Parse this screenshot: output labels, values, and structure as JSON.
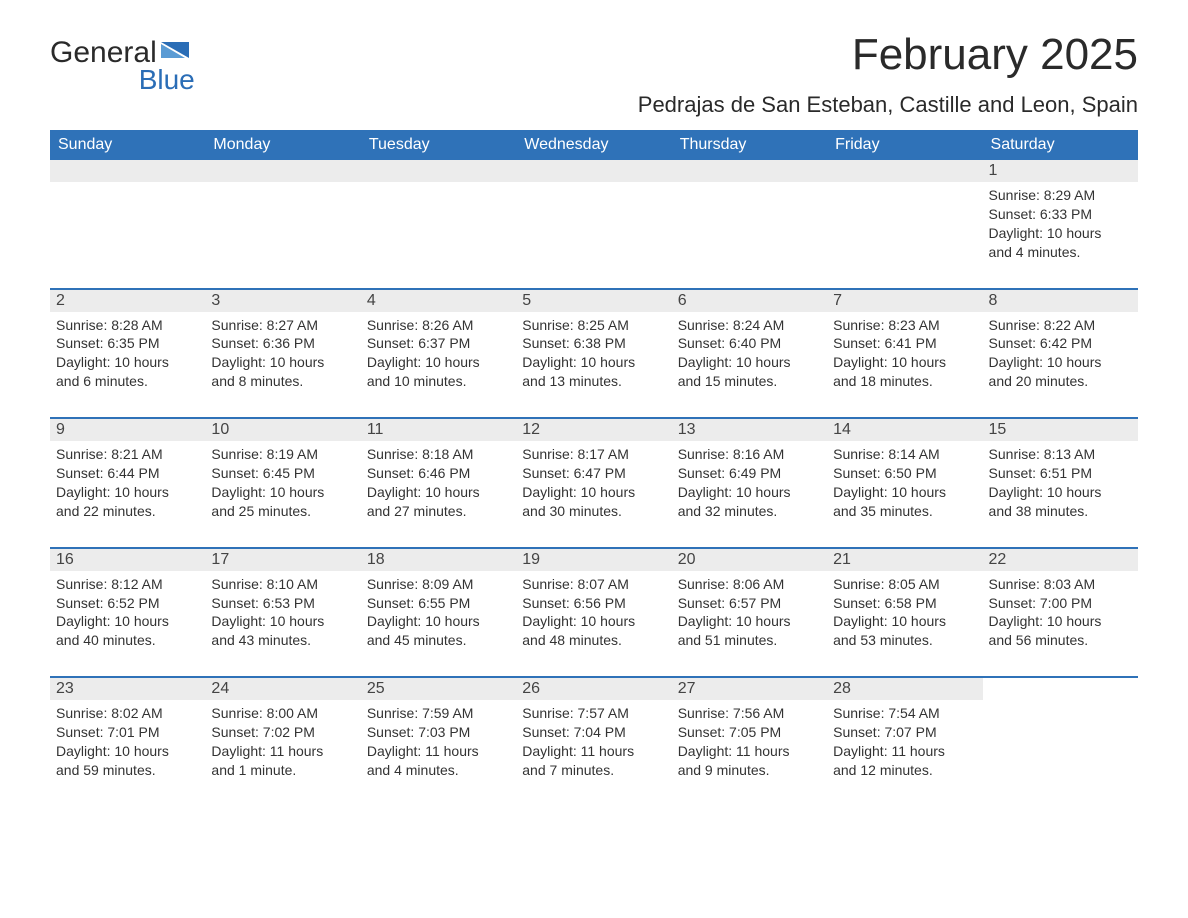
{
  "brand": {
    "word1": "General",
    "word2": "Blue",
    "text_color": "#2a2a2a",
    "accent_color": "#2a6db6"
  },
  "title": "February 2025",
  "location": "Pedrajas de San Esteban, Castille and Leon, Spain",
  "colors": {
    "header_bg": "#2f72b8",
    "header_text": "#ffffff",
    "daynum_bg": "#ececec",
    "page_bg": "#ffffff",
    "body_text": "#333333"
  },
  "day_headers": [
    "Sunday",
    "Monday",
    "Tuesday",
    "Wednesday",
    "Thursday",
    "Friday",
    "Saturday"
  ],
  "weeks": [
    [
      {
        "empty": true
      },
      {
        "empty": true
      },
      {
        "empty": true
      },
      {
        "empty": true
      },
      {
        "empty": true
      },
      {
        "empty": true
      },
      {
        "day": "1",
        "sunrise": "Sunrise: 8:29 AM",
        "sunset": "Sunset: 6:33 PM",
        "dl1": "Daylight: 10 hours",
        "dl2": "and 4 minutes."
      }
    ],
    [
      {
        "day": "2",
        "sunrise": "Sunrise: 8:28 AM",
        "sunset": "Sunset: 6:35 PM",
        "dl1": "Daylight: 10 hours",
        "dl2": "and 6 minutes."
      },
      {
        "day": "3",
        "sunrise": "Sunrise: 8:27 AM",
        "sunset": "Sunset: 6:36 PM",
        "dl1": "Daylight: 10 hours",
        "dl2": "and 8 minutes."
      },
      {
        "day": "4",
        "sunrise": "Sunrise: 8:26 AM",
        "sunset": "Sunset: 6:37 PM",
        "dl1": "Daylight: 10 hours",
        "dl2": "and 10 minutes."
      },
      {
        "day": "5",
        "sunrise": "Sunrise: 8:25 AM",
        "sunset": "Sunset: 6:38 PM",
        "dl1": "Daylight: 10 hours",
        "dl2": "and 13 minutes."
      },
      {
        "day": "6",
        "sunrise": "Sunrise: 8:24 AM",
        "sunset": "Sunset: 6:40 PM",
        "dl1": "Daylight: 10 hours",
        "dl2": "and 15 minutes."
      },
      {
        "day": "7",
        "sunrise": "Sunrise: 8:23 AM",
        "sunset": "Sunset: 6:41 PM",
        "dl1": "Daylight: 10 hours",
        "dl2": "and 18 minutes."
      },
      {
        "day": "8",
        "sunrise": "Sunrise: 8:22 AM",
        "sunset": "Sunset: 6:42 PM",
        "dl1": "Daylight: 10 hours",
        "dl2": "and 20 minutes."
      }
    ],
    [
      {
        "day": "9",
        "sunrise": "Sunrise: 8:21 AM",
        "sunset": "Sunset: 6:44 PM",
        "dl1": "Daylight: 10 hours",
        "dl2": "and 22 minutes."
      },
      {
        "day": "10",
        "sunrise": "Sunrise: 8:19 AM",
        "sunset": "Sunset: 6:45 PM",
        "dl1": "Daylight: 10 hours",
        "dl2": "and 25 minutes."
      },
      {
        "day": "11",
        "sunrise": "Sunrise: 8:18 AM",
        "sunset": "Sunset: 6:46 PM",
        "dl1": "Daylight: 10 hours",
        "dl2": "and 27 minutes."
      },
      {
        "day": "12",
        "sunrise": "Sunrise: 8:17 AM",
        "sunset": "Sunset: 6:47 PM",
        "dl1": "Daylight: 10 hours",
        "dl2": "and 30 minutes."
      },
      {
        "day": "13",
        "sunrise": "Sunrise: 8:16 AM",
        "sunset": "Sunset: 6:49 PM",
        "dl1": "Daylight: 10 hours",
        "dl2": "and 32 minutes."
      },
      {
        "day": "14",
        "sunrise": "Sunrise: 8:14 AM",
        "sunset": "Sunset: 6:50 PM",
        "dl1": "Daylight: 10 hours",
        "dl2": "and 35 minutes."
      },
      {
        "day": "15",
        "sunrise": "Sunrise: 8:13 AM",
        "sunset": "Sunset: 6:51 PM",
        "dl1": "Daylight: 10 hours",
        "dl2": "and 38 minutes."
      }
    ],
    [
      {
        "day": "16",
        "sunrise": "Sunrise: 8:12 AM",
        "sunset": "Sunset: 6:52 PM",
        "dl1": "Daylight: 10 hours",
        "dl2": "and 40 minutes."
      },
      {
        "day": "17",
        "sunrise": "Sunrise: 8:10 AM",
        "sunset": "Sunset: 6:53 PM",
        "dl1": "Daylight: 10 hours",
        "dl2": "and 43 minutes."
      },
      {
        "day": "18",
        "sunrise": "Sunrise: 8:09 AM",
        "sunset": "Sunset: 6:55 PM",
        "dl1": "Daylight: 10 hours",
        "dl2": "and 45 minutes."
      },
      {
        "day": "19",
        "sunrise": "Sunrise: 8:07 AM",
        "sunset": "Sunset: 6:56 PM",
        "dl1": "Daylight: 10 hours",
        "dl2": "and 48 minutes."
      },
      {
        "day": "20",
        "sunrise": "Sunrise: 8:06 AM",
        "sunset": "Sunset: 6:57 PM",
        "dl1": "Daylight: 10 hours",
        "dl2": "and 51 minutes."
      },
      {
        "day": "21",
        "sunrise": "Sunrise: 8:05 AM",
        "sunset": "Sunset: 6:58 PM",
        "dl1": "Daylight: 10 hours",
        "dl2": "and 53 minutes."
      },
      {
        "day": "22",
        "sunrise": "Sunrise: 8:03 AM",
        "sunset": "Sunset: 7:00 PM",
        "dl1": "Daylight: 10 hours",
        "dl2": "and 56 minutes."
      }
    ],
    [
      {
        "day": "23",
        "sunrise": "Sunrise: 8:02 AM",
        "sunset": "Sunset: 7:01 PM",
        "dl1": "Daylight: 10 hours",
        "dl2": "and 59 minutes."
      },
      {
        "day": "24",
        "sunrise": "Sunrise: 8:00 AM",
        "sunset": "Sunset: 7:02 PM",
        "dl1": "Daylight: 11 hours",
        "dl2": "and 1 minute."
      },
      {
        "day": "25",
        "sunrise": "Sunrise: 7:59 AM",
        "sunset": "Sunset: 7:03 PM",
        "dl1": "Daylight: 11 hours",
        "dl2": "and 4 minutes."
      },
      {
        "day": "26",
        "sunrise": "Sunrise: 7:57 AM",
        "sunset": "Sunset: 7:04 PM",
        "dl1": "Daylight: 11 hours",
        "dl2": "and 7 minutes."
      },
      {
        "day": "27",
        "sunrise": "Sunrise: 7:56 AM",
        "sunset": "Sunset: 7:05 PM",
        "dl1": "Daylight: 11 hours",
        "dl2": "and 9 minutes."
      },
      {
        "day": "28",
        "sunrise": "Sunrise: 7:54 AM",
        "sunset": "Sunset: 7:07 PM",
        "dl1": "Daylight: 11 hours",
        "dl2": "and 12 minutes."
      },
      {
        "empty": true
      }
    ]
  ]
}
